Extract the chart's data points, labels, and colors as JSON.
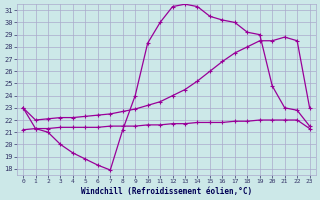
{
  "xlabel": "Windchill (Refroidissement éolien,°C)",
  "bg_color": "#cce8e8",
  "grid_color": "#aaaacc",
  "line_color": "#990099",
  "xlim": [
    -0.5,
    23.5
  ],
  "ylim": [
    17.5,
    31.5
  ],
  "xticks": [
    0,
    1,
    2,
    3,
    4,
    5,
    6,
    7,
    8,
    9,
    10,
    11,
    12,
    13,
    14,
    15,
    16,
    17,
    18,
    19,
    20,
    21,
    22,
    23
  ],
  "yticks": [
    18,
    19,
    20,
    21,
    22,
    23,
    24,
    25,
    26,
    27,
    28,
    29,
    30,
    31
  ],
  "line1_x": [
    0,
    1,
    2,
    3,
    4,
    5,
    6,
    7,
    8,
    9,
    10,
    11,
    12,
    13,
    14,
    15,
    16,
    17,
    18,
    19,
    20,
    21,
    22,
    23
  ],
  "line1_y": [
    23.0,
    21.3,
    21.0,
    20.0,
    19.3,
    18.8,
    18.3,
    17.9,
    21.2,
    24.0,
    28.3,
    30.0,
    31.3,
    31.5,
    31.3,
    30.5,
    30.2,
    30.0,
    29.2,
    29.0,
    24.8,
    23.0,
    22.8,
    21.5
  ],
  "line2_x": [
    0,
    1,
    2,
    3,
    4,
    5,
    6,
    7,
    8,
    9,
    10,
    11,
    12,
    13,
    14,
    15,
    16,
    17,
    18,
    19,
    20,
    21,
    22,
    23
  ],
  "line2_y": [
    21.2,
    21.3,
    21.3,
    21.4,
    21.4,
    21.4,
    21.4,
    21.5,
    21.5,
    21.5,
    21.6,
    21.6,
    21.7,
    21.7,
    21.8,
    21.8,
    21.8,
    21.9,
    21.9,
    22.0,
    22.0,
    22.0,
    22.0,
    21.3
  ],
  "line3_x": [
    0,
    1,
    2,
    3,
    4,
    5,
    6,
    7,
    8,
    9,
    10,
    11,
    12,
    13,
    14,
    15,
    16,
    17,
    18,
    19,
    20,
    21,
    22,
    23
  ],
  "line3_y": [
    23.0,
    22.0,
    22.1,
    22.2,
    22.2,
    22.3,
    22.4,
    22.5,
    22.7,
    22.9,
    23.2,
    23.5,
    24.0,
    24.5,
    25.2,
    26.0,
    26.8,
    27.5,
    28.0,
    28.5,
    28.5,
    28.8,
    28.5,
    23.0
  ]
}
